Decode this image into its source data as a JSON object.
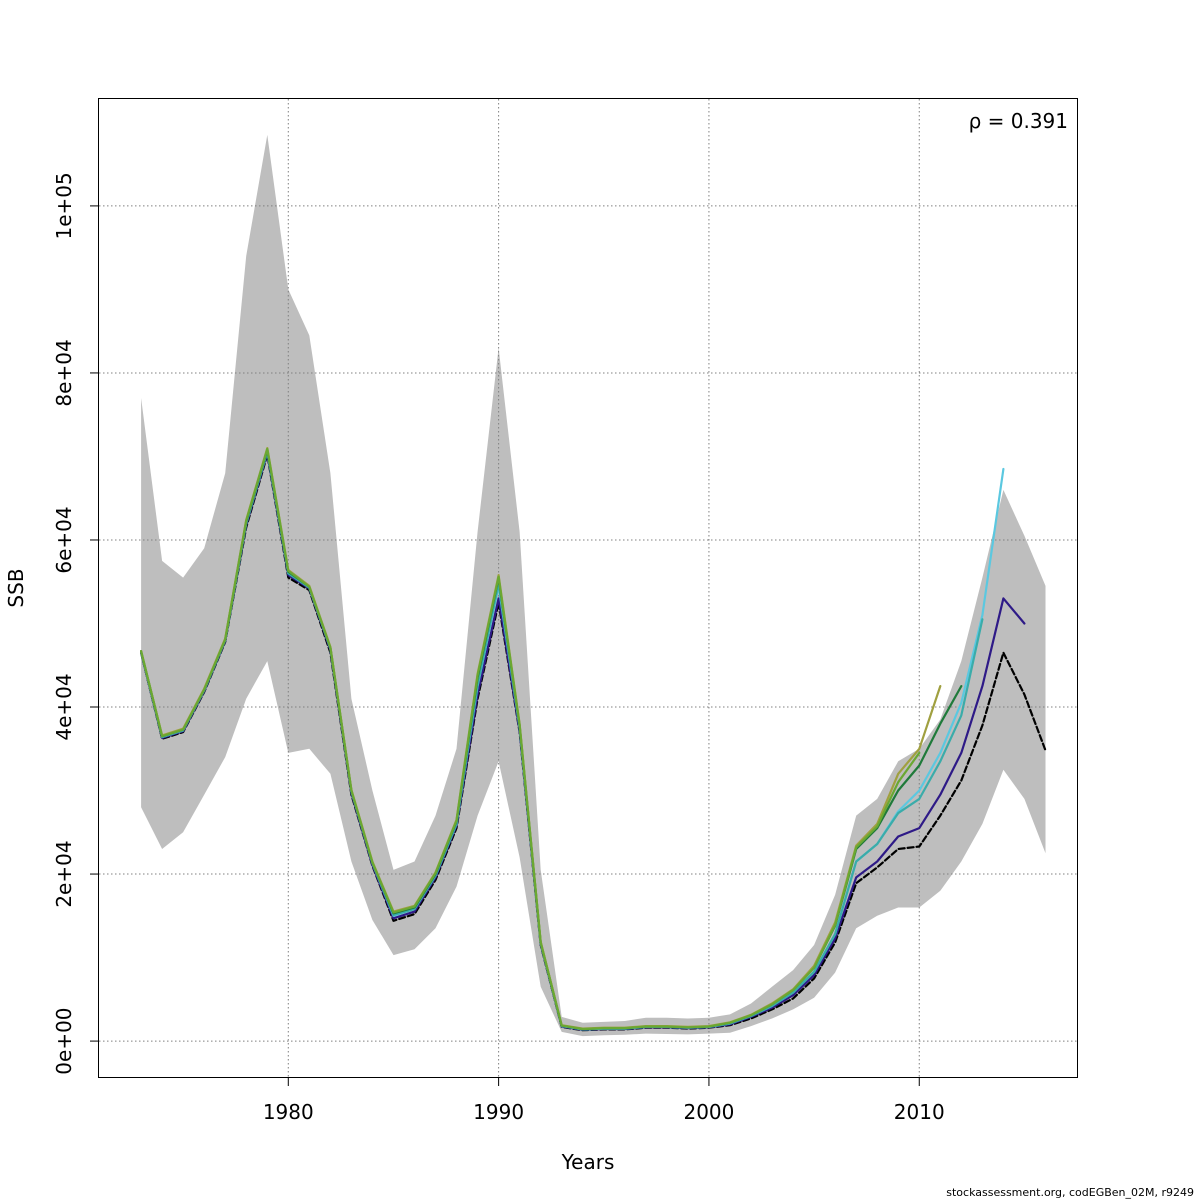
{
  "chart_data": {
    "type": "line",
    "xlabel": "Years",
    "ylabel": "SSB",
    "annotation": "ρ = 0.391",
    "credit": "stockassessment.org, codEGBen_02M, r9249",
    "xlim": [
      1971,
      2017.5
    ],
    "ylim": [
      -4300,
      112800
    ],
    "xticks": [
      1980,
      1990,
      2000,
      2010
    ],
    "yticks": [
      0,
      20000,
      40000,
      60000,
      80000,
      100000
    ],
    "ytick_labels": [
      "0e+00",
      "2e+04",
      "4e+04",
      "6e+04",
      "8e+04",
      "1e+05"
    ],
    "grid": true,
    "colors": {
      "band": "#bebebe",
      "grid": "#808080",
      "frame": "#000000"
    },
    "confidence_band": {
      "x": [
        1973,
        1974,
        1975,
        1976,
        1977,
        1978,
        1979,
        1980,
        1981,
        1982,
        1983,
        1984,
        1985,
        1986,
        1987,
        1988,
        1989,
        1990,
        1991,
        1992,
        1993,
        1994,
        1995,
        1996,
        1997,
        1998,
        1999,
        2000,
        2001,
        2002,
        2003,
        2004,
        2005,
        2006,
        2007,
        2008,
        2009,
        2010,
        2011,
        2012,
        2013,
        2014,
        2015,
        2016
      ],
      "upper": [
        77000,
        57500,
        55500,
        59000,
        68000,
        94000,
        108500,
        90000,
        84500,
        68000,
        41000,
        30000,
        20500,
        21500,
        27000,
        35000,
        61000,
        83000,
        61000,
        20500,
        2900,
        2200,
        2300,
        2400,
        2800,
        2800,
        2700,
        2800,
        3200,
        4500,
        6500,
        8500,
        11500,
        17500,
        27000,
        29000,
        33500,
        35000,
        38500,
        45500,
        55500,
        66000,
        60500,
        54500
      ],
      "lower": [
        28000,
        23000,
        25000,
        29500,
        34000,
        41000,
        45500,
        34500,
        35000,
        32000,
        21500,
        14500,
        10300,
        11000,
        13500,
        18500,
        27000,
        33500,
        22000,
        6500,
        1100,
        600,
        700,
        750,
        900,
        850,
        800,
        900,
        1000,
        1800,
        2700,
        3800,
        5200,
        8200,
        13500,
        15000,
        16000,
        16000,
        18000,
        21500,
        26000,
        32500,
        29000,
        22500
      ]
    },
    "series": [
      {
        "color": "#000000",
        "dashed": true,
        "x": [
          1973,
          1974,
          1975,
          1976,
          1977,
          1978,
          1979,
          1980,
          1981,
          1982,
          1983,
          1984,
          1985,
          1986,
          1987,
          1988,
          1989,
          1990,
          1991,
          1992,
          1993,
          1994,
          1995,
          1996,
          1997,
          1998,
          1999,
          2000,
          2001,
          2002,
          2003,
          2004,
          2005,
          2006,
          2007,
          2008,
          2009,
          2010,
          2011,
          2012,
          2013,
          2014,
          2015,
          2016
        ],
        "values": [
          46500,
          36200,
          37000,
          41800,
          47800,
          61500,
          70200,
          55500,
          54000,
          46500,
          29500,
          21000,
          14400,
          15200,
          19300,
          25500,
          41000,
          52500,
          37000,
          11500,
          1700,
          1300,
          1400,
          1400,
          1600,
          1600,
          1500,
          1600,
          1900,
          2700,
          3800,
          5100,
          7500,
          11800,
          18900,
          20800,
          23000,
          23300,
          27000,
          31200,
          37800,
          46500,
          41500,
          34800
        ]
      },
      {
        "color": "#2e1a87",
        "dashed": false,
        "x": [
          1973,
          1974,
          1975,
          1976,
          1977,
          1978,
          1979,
          1980,
          1981,
          1982,
          1983,
          1984,
          1985,
          1986,
          1987,
          1988,
          1989,
          1990,
          1991,
          1992,
          1993,
          1994,
          1995,
          1996,
          1997,
          1998,
          1999,
          2000,
          2001,
          2002,
          2003,
          2004,
          2005,
          2006,
          2007,
          2008,
          2009,
          2010,
          2011,
          2012,
          2013,
          2014,
          2015
        ],
        "values": [
          46500,
          36300,
          37100,
          41900,
          47900,
          61800,
          70400,
          55800,
          54200,
          46800,
          29700,
          21100,
          14700,
          15500,
          19600,
          25800,
          41500,
          53000,
          37200,
          11600,
          1750,
          1350,
          1450,
          1450,
          1650,
          1650,
          1550,
          1650,
          2000,
          2900,
          4000,
          5500,
          7900,
          12300,
          19600,
          21500,
          24500,
          25500,
          29500,
          34500,
          42500,
          53000,
          50000
        ]
      },
      {
        "color": "#5bc8e0",
        "dashed": false,
        "x": [
          1973,
          1974,
          1975,
          1976,
          1977,
          1978,
          1979,
          1980,
          1981,
          1982,
          1983,
          1984,
          1985,
          1986,
          1987,
          1988,
          1989,
          1990,
          1991,
          1992,
          1993,
          1994,
          1995,
          1996,
          1997,
          1998,
          1999,
          2000,
          2001,
          2002,
          2003,
          2004,
          2005,
          2006,
          2007,
          2008,
          2009,
          2010,
          2011,
          2012,
          2013,
          2014
        ],
        "values": [
          46600,
          36400,
          37200,
          42000,
          48000,
          62000,
          70600,
          56000,
          54300,
          47000,
          29900,
          21300,
          15000,
          15800,
          19800,
          26000,
          42500,
          54500,
          37500,
          11700,
          1800,
          1400,
          1500,
          1500,
          1700,
          1700,
          1600,
          1700,
          2100,
          3000,
          4200,
          5800,
          8300,
          12800,
          21500,
          23600,
          27500,
          30000,
          34500,
          40500,
          51000,
          68500
        ]
      },
      {
        "color": "#3aacaa",
        "dashed": false,
        "x": [
          1973,
          1974,
          1975,
          1976,
          1977,
          1978,
          1979,
          1980,
          1981,
          1982,
          1983,
          1984,
          1985,
          1986,
          1987,
          1988,
          1989,
          1990,
          1991,
          1992,
          1993,
          1994,
          1995,
          1996,
          1997,
          1998,
          1999,
          2000,
          2001,
          2002,
          2003,
          2004,
          2005,
          2006,
          2007,
          2008,
          2009,
          2010,
          2011,
          2012,
          2013
        ],
        "values": [
          46600,
          36400,
          37200,
          42000,
          48000,
          62000,
          70600,
          56000,
          54300,
          47000,
          29900,
          21300,
          15100,
          15800,
          19800,
          26000,
          42700,
          54800,
          37600,
          11700,
          1800,
          1400,
          1500,
          1500,
          1700,
          1700,
          1600,
          1700,
          2100,
          3000,
          4200,
          5800,
          8300,
          12800,
          21500,
          23600,
          27300,
          29000,
          33500,
          39000,
          50500
        ]
      },
      {
        "color": "#1f7a3a",
        "dashed": false,
        "x": [
          1973,
          1974,
          1975,
          1976,
          1977,
          1978,
          1979,
          1980,
          1981,
          1982,
          1983,
          1984,
          1985,
          1986,
          1987,
          1988,
          1989,
          1990,
          1991,
          1992,
          1993,
          1994,
          1995,
          1996,
          1997,
          1998,
          1999,
          2000,
          2001,
          2002,
          2003,
          2004,
          2005,
          2006,
          2007,
          2008,
          2009,
          2010,
          2011,
          2012
        ],
        "values": [
          46700,
          36500,
          37300,
          42100,
          48100,
          62200,
          70800,
          56200,
          54400,
          47100,
          30000,
          21400,
          15300,
          16000,
          20000,
          26300,
          43500,
          55500,
          37800,
          11800,
          1850,
          1450,
          1550,
          1550,
          1750,
          1750,
          1650,
          1750,
          2200,
          3100,
          4400,
          6100,
          8800,
          13800,
          23000,
          25500,
          30000,
          33000,
          38000,
          42500
        ]
      },
      {
        "color": "#a0a040",
        "dashed": false,
        "x": [
          1973,
          1974,
          1975,
          1976,
          1977,
          1978,
          1979,
          1980,
          1981,
          1982,
          1983,
          1984,
          1985,
          1986,
          1987,
          1988,
          1989,
          1990,
          1991,
          1992,
          1993,
          1994,
          1995,
          1996,
          1997,
          1998,
          1999,
          2000,
          2001,
          2002,
          2003,
          2004,
          2005,
          2006,
          2007,
          2008,
          2009,
          2010,
          2011
        ],
        "values": [
          46700,
          36600,
          37400,
          42200,
          48200,
          62400,
          71000,
          56400,
          54500,
          47200,
          30100,
          21500,
          15500,
          16200,
          20200,
          26500,
          44000,
          55800,
          38000,
          11900,
          1900,
          1500,
          1600,
          1600,
          1800,
          1800,
          1700,
          1800,
          2250,
          3150,
          4500,
          6200,
          9000,
          14200,
          23400,
          26000,
          32000,
          35000,
          42500
        ]
      },
      {
        "color": "#6aa832",
        "dashed": false,
        "x": [
          1973,
          1974,
          1975,
          1976,
          1977,
          1978,
          1979,
          1980,
          1981,
          1982,
          1983,
          1984,
          1985,
          1986,
          1987,
          1988,
          1989,
          1990,
          1991,
          1992,
          1993,
          1994,
          1995,
          1996,
          1997,
          1998,
          1999,
          2000,
          2001,
          2002,
          2003,
          2004,
          2005,
          2006,
          2007,
          2008,
          2009,
          2010
        ],
        "values": [
          46700,
          36500,
          37300,
          42100,
          48100,
          62300,
          70900,
          56300,
          54400,
          47100,
          30000,
          21400,
          15400,
          16100,
          20100,
          26400,
          43800,
          55600,
          37900,
          11800,
          1850,
          1450,
          1550,
          1550,
          1750,
          1750,
          1650,
          1750,
          2200,
          3100,
          4400,
          6100,
          8800,
          13900,
          23200,
          25700,
          31000,
          34500
        ]
      }
    ]
  }
}
